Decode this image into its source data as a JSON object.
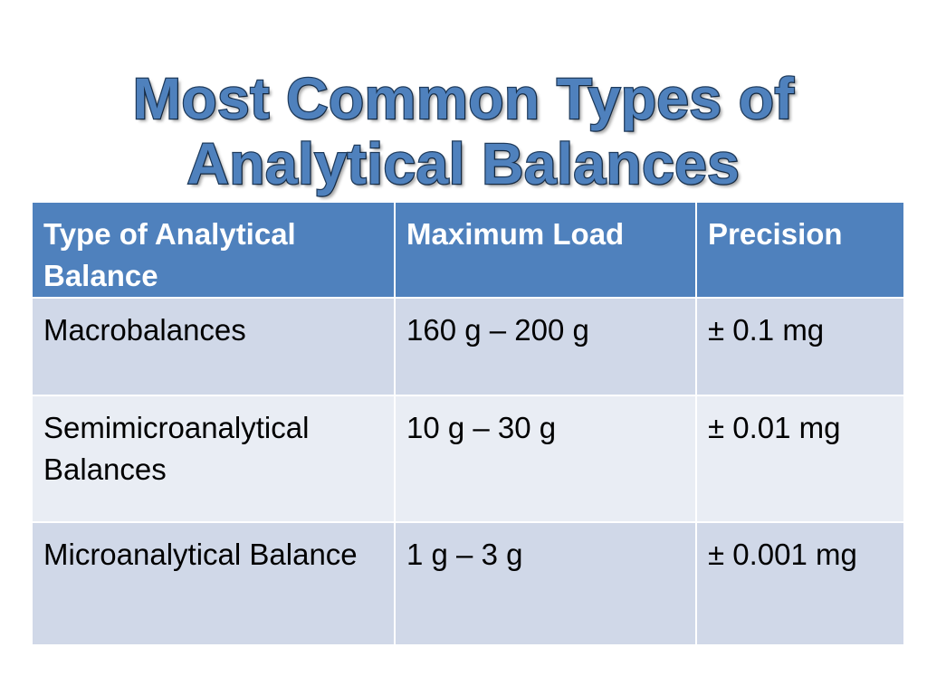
{
  "slide": {
    "title_line1": "Most Common Types of",
    "title_line2": "Analytical Balances"
  },
  "table": {
    "headers": [
      "Type of Analytical Balance",
      "Maximum Load",
      "Precision"
    ],
    "rows": [
      [
        "Macrobalances",
        "160 g – 200 g",
        "± 0.1 mg"
      ],
      [
        "Semimicroanalytical Balances",
        "10 g – 30 g",
        "± 0.01 mg"
      ],
      [
        "Microanalytical Balance",
        "1 g – 3 g",
        "± 0.001 mg"
      ]
    ]
  },
  "colors": {
    "title_fill": "#4f81bd",
    "header_bg": "#4f81bd",
    "row_odd_bg": "#d0d8e8",
    "row_even_bg": "#e9edf4"
  }
}
